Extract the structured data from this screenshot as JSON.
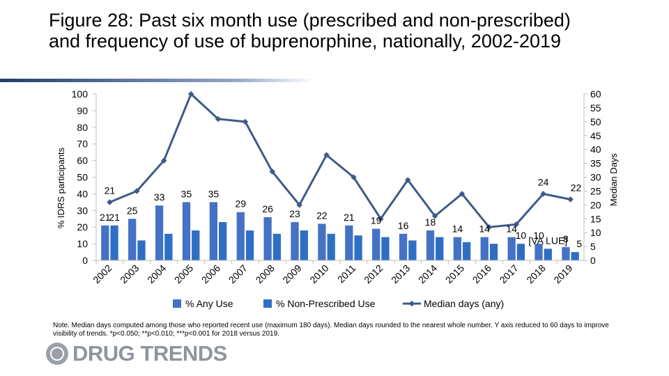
{
  "title": "Figure 28: Past six month use (prescribed and non-prescribed) and frequency of use of buprenorphine, nationally, 2002-2019",
  "note": "Note. Median days computed among those who reported recent use (maximum 180 days). Median days rounded to the nearest whole number. Y axis reduced to 60 days to improve visibility of trends. *p<0.050; **p<0.010; ***p<0.001 for 2018 versus 2019.",
  "logo_text": "DRUG TRENDS",
  "colors": {
    "any_use": "#4472c4",
    "non_prescribed": "#2e6fc4",
    "median_line": "#3e5a8a"
  },
  "chart_data": {
    "type": "bar",
    "categories": [
      "2002",
      "2003",
      "2004",
      "2005",
      "2006",
      "2007",
      "2008",
      "2009",
      "2010",
      "2011",
      "2012",
      "2013",
      "2014",
      "2015",
      "2016",
      "2017",
      "2018",
      "2019"
    ],
    "ylabel": "% IDRS participants",
    "y2label": "Median Days",
    "ylim": [
      0,
      100
    ],
    "y2lim": [
      0,
      60
    ],
    "yticks": [
      0,
      10,
      20,
      30,
      40,
      50,
      60,
      70,
      80,
      90,
      100
    ],
    "y2ticks": [
      0,
      5,
      10,
      15,
      20,
      25,
      30,
      35,
      40,
      45,
      50,
      55,
      60
    ],
    "series": [
      {
        "name": "% Any Use",
        "type": "bar",
        "axis": "left",
        "values": [
          21,
          25,
          33,
          35,
          35,
          29,
          26,
          23,
          22,
          21,
          19,
          16,
          18,
          14,
          14,
          14,
          10,
          8
        ],
        "labels": [
          "21",
          "25",
          "33",
          "35",
          "35",
          "29",
          "26",
          "23",
          "22",
          "21",
          "19",
          "16",
          "18",
          "14",
          "14",
          "14",
          "10",
          "8"
        ]
      },
      {
        "name": "% Non-Prescribed Use",
        "type": "bar",
        "axis": "left",
        "values": [
          21,
          12,
          16,
          18,
          23,
          18,
          16,
          18,
          16,
          15,
          14,
          12,
          14,
          11,
          10,
          10,
          7,
          5
        ],
        "labels": [
          "21",
          "",
          "",
          "",
          "",
          "",
          "",
          "",
          "",
          "",
          "",
          "",
          "",
          "",
          "",
          "10",
          "[VA LUE]",
          "5"
        ]
      },
      {
        "name": "Median days (any)",
        "type": "line",
        "axis": "right",
        "values": [
          21,
          25,
          36,
          60,
          51,
          50,
          32,
          20,
          38,
          30,
          15,
          29,
          16,
          24,
          12,
          13,
          24,
          22
        ],
        "labels": [
          "21",
          "",
          "",
          "",
          "",
          "",
          "",
          "",
          "",
          "",
          "",
          "",
          "",
          "",
          "",
          "",
          "24",
          "22"
        ]
      }
    ],
    "legend_position": "bottom"
  }
}
